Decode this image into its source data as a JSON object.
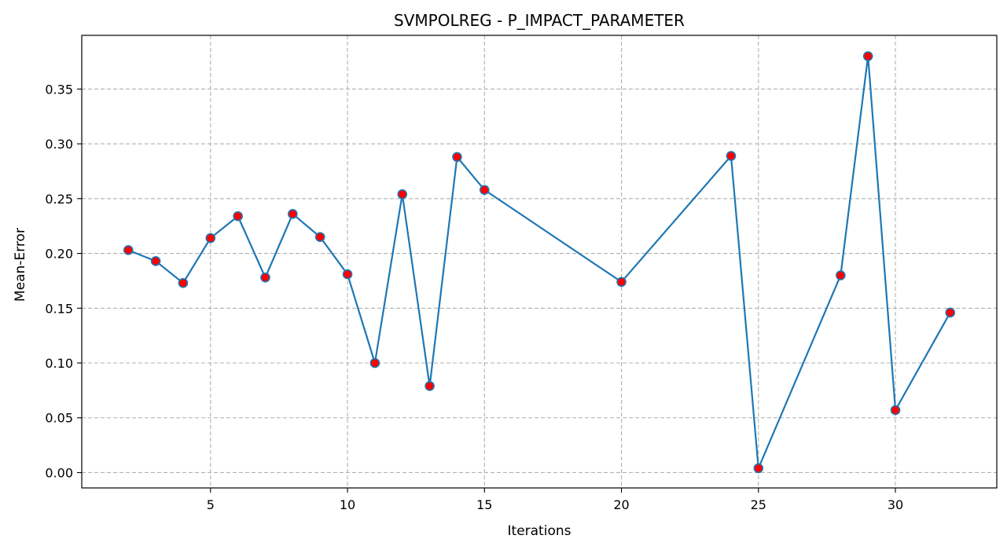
{
  "chart_data": {
    "type": "line",
    "title": "SVMPOLREG - P_IMPACT_PARAMETER",
    "xlabel": "Iterations",
    "ylabel": "Mean-Error",
    "xlim": [
      0.3,
      33.7
    ],
    "ylim": [
      -0.014,
      0.399
    ],
    "xticks": [
      5,
      10,
      15,
      20,
      25,
      30
    ],
    "yticks": [
      0.0,
      0.05,
      0.1,
      0.15,
      0.2,
      0.25,
      0.3,
      0.35
    ],
    "ytick_labels": [
      "0.00",
      "0.05",
      "0.10",
      "0.15",
      "0.20",
      "0.25",
      "0.30",
      "0.35"
    ],
    "grid": true,
    "line_color": "#1f77b4",
    "marker_face_color": "#ff0000",
    "marker_edge_color": "#1f77b4",
    "series": [
      {
        "x": [
          2,
          3,
          4,
          5,
          6,
          7,
          8,
          9,
          10,
          11,
          12,
          13,
          14,
          15,
          20,
          24,
          25,
          28,
          29,
          30,
          32
        ],
        "values": [
          0.203,
          0.193,
          0.173,
          0.214,
          0.234,
          0.178,
          0.236,
          0.215,
          0.181,
          0.1,
          0.254,
          0.079,
          0.288,
          0.258,
          0.174,
          0.289,
          0.004,
          0.18,
          0.38,
          0.057,
          0.146
        ]
      }
    ]
  }
}
